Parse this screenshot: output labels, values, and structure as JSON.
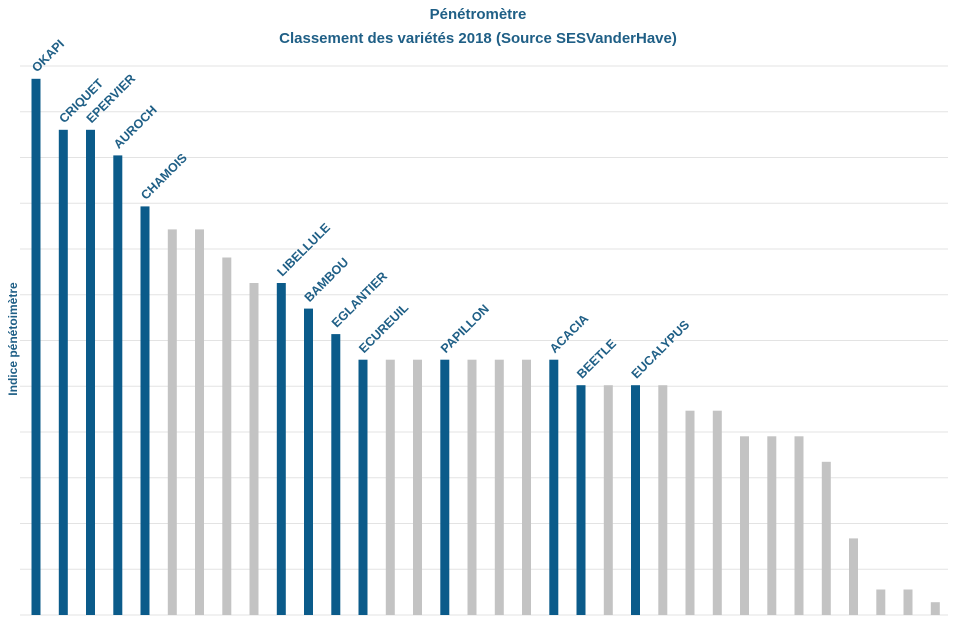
{
  "chart_data": {
    "type": "bar",
    "title": "Pénétromètre",
    "subtitle": "Classement des variétés 2018 (Source SESVanderHave)",
    "xlabel": "",
    "ylabel": "Indice pénétoimètre",
    "ylim": [
      0,
      21.5
    ],
    "grid": true,
    "colors": {
      "highlight": "#0b5b8a",
      "other": "#c3c3c3",
      "grid": "#e3e3e3",
      "text": "#1f5f86"
    },
    "bars": [
      {
        "label": "OKAPI",
        "value": 21,
        "highlight": true
      },
      {
        "label": "CRIQUET",
        "value": 19,
        "highlight": true
      },
      {
        "label": "EPERVIER",
        "value": 19,
        "highlight": true
      },
      {
        "label": "AUROCH",
        "value": 18,
        "highlight": true
      },
      {
        "label": "CHAMOIS",
        "value": 16,
        "highlight": true
      },
      {
        "label": "",
        "value": 15.1,
        "highlight": false
      },
      {
        "label": "",
        "value": 15.1,
        "highlight": false
      },
      {
        "label": "",
        "value": 14,
        "highlight": false
      },
      {
        "label": "",
        "value": 13,
        "highlight": false
      },
      {
        "label": "LIBELLULE",
        "value": 13,
        "highlight": true
      },
      {
        "label": "BAMBOU",
        "value": 12,
        "highlight": true
      },
      {
        "label": "EGLANTIER",
        "value": 11,
        "highlight": true
      },
      {
        "label": "ECUREUIL",
        "value": 10,
        "highlight": true
      },
      {
        "label": "",
        "value": 10,
        "highlight": false
      },
      {
        "label": "",
        "value": 10,
        "highlight": false
      },
      {
        "label": "PAPILLON",
        "value": 10,
        "highlight": true
      },
      {
        "label": "",
        "value": 10,
        "highlight": false
      },
      {
        "label": "",
        "value": 10,
        "highlight": false
      },
      {
        "label": "",
        "value": 10,
        "highlight": false
      },
      {
        "label": "ACACIA",
        "value": 10,
        "highlight": true
      },
      {
        "label": "BEETLE",
        "value": 9,
        "highlight": true
      },
      {
        "label": "",
        "value": 9,
        "highlight": false
      },
      {
        "label": "EUCALYPUS",
        "value": 9,
        "highlight": true
      },
      {
        "label": "",
        "value": 9,
        "highlight": false
      },
      {
        "label": "",
        "value": 8,
        "highlight": false
      },
      {
        "label": "",
        "value": 8,
        "highlight": false
      },
      {
        "label": "",
        "value": 7,
        "highlight": false
      },
      {
        "label": "",
        "value": 7,
        "highlight": false
      },
      {
        "label": "",
        "value": 7,
        "highlight": false
      },
      {
        "label": "",
        "value": 6,
        "highlight": false
      },
      {
        "label": "",
        "value": 3,
        "highlight": false
      },
      {
        "label": "",
        "value": 1,
        "highlight": false
      },
      {
        "label": "",
        "value": 1,
        "highlight": false
      },
      {
        "label": "",
        "value": 0.5,
        "highlight": false
      }
    ]
  }
}
